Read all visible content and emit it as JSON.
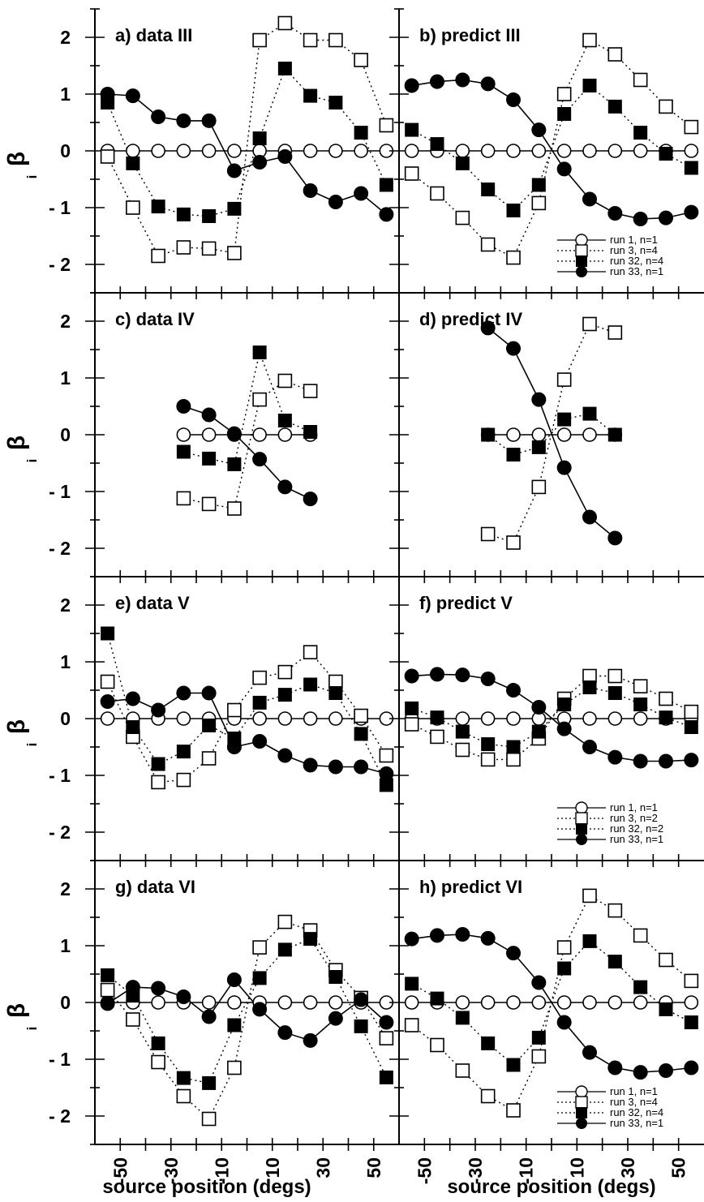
{
  "figure": {
    "ylabel": "β",
    "ylabel_sub": "i",
    "xlabel": "source position (degs)",
    "x_tick_labels": [
      "-50",
      "-30",
      "-10",
      "10",
      "30",
      "50"
    ],
    "y_tick_labels": [
      "2",
      "1",
      "0",
      "- 1",
      "- 2"
    ]
  },
  "chart_data": [
    {
      "type": "line",
      "title": "a) data III",
      "xlim": [
        -60,
        60
      ],
      "ylim": [
        -2.5,
        2.5
      ],
      "x": [
        -55,
        -45,
        -35,
        -25,
        -15,
        -5,
        5,
        15,
        25,
        35,
        45,
        55
      ],
      "series": [
        {
          "marker": "open-circle",
          "line": "solid",
          "values": [
            0,
            0,
            0,
            0,
            0,
            0,
            0,
            0,
            0,
            0,
            0,
            0
          ]
        },
        {
          "marker": "open-square",
          "line": "dotted",
          "values": [
            -0.1,
            -1.0,
            -1.85,
            -1.7,
            -1.72,
            -1.8,
            1.95,
            2.25,
            1.95,
            1.95,
            1.6,
            0.45
          ]
        },
        {
          "marker": "filled-square",
          "line": "dotted",
          "values": [
            0.85,
            -0.22,
            -0.98,
            -1.12,
            -1.15,
            -1.02,
            0.22,
            1.45,
            0.97,
            0.85,
            0.32,
            -0.6
          ]
        },
        {
          "marker": "filled-circle",
          "line": "solid",
          "values": [
            1.0,
            0.97,
            0.6,
            0.53,
            0.53,
            -0.35,
            -0.2,
            -0.1,
            -0.7,
            -0.9,
            -0.75,
            -1.12
          ]
        }
      ]
    },
    {
      "type": "line",
      "title": "b) predict III",
      "xlim": [
        -60,
        60
      ],
      "ylim": [
        -2.5,
        2.5
      ],
      "x": [
        -55,
        -45,
        -35,
        -25,
        -15,
        -5,
        5,
        15,
        25,
        35,
        45,
        55
      ],
      "legend_position": "bottom-right",
      "series": [
        {
          "name": "run 1, n=1",
          "marker": "open-circle",
          "line": "solid",
          "values": [
            0,
            0,
            0,
            0,
            0,
            0,
            0,
            0,
            0,
            0,
            0,
            0
          ]
        },
        {
          "name": "run 3, n=4",
          "marker": "open-square",
          "line": "dotted",
          "values": [
            -0.4,
            -0.75,
            -1.18,
            -1.65,
            -1.88,
            -0.92,
            1.0,
            1.95,
            1.7,
            1.25,
            0.78,
            0.42
          ]
        },
        {
          "name": "run 32, n=4",
          "marker": "filled-square",
          "line": "dotted",
          "values": [
            0.37,
            0.12,
            -0.22,
            -0.68,
            -1.05,
            -0.6,
            0.65,
            1.15,
            0.78,
            0.32,
            -0.05,
            -0.3
          ]
        },
        {
          "name": "run 33, n=1",
          "marker": "filled-circle",
          "line": "solid",
          "values": [
            1.15,
            1.22,
            1.25,
            1.18,
            0.9,
            0.37,
            -0.32,
            -0.85,
            -1.1,
            -1.2,
            -1.18,
            -1.08
          ]
        }
      ]
    },
    {
      "type": "line",
      "title": "c) data IV",
      "xlim": [
        -60,
        60
      ],
      "ylim": [
        -2.5,
        2.5
      ],
      "x": [
        -25,
        -15,
        -5,
        5,
        15,
        25
      ],
      "series": [
        {
          "marker": "open-circle",
          "line": "solid",
          "values": [
            0,
            0,
            0,
            0,
            0,
            0
          ]
        },
        {
          "marker": "open-square",
          "line": "dotted",
          "values": [
            -1.12,
            -1.22,
            -1.3,
            0.62,
            0.95,
            0.77
          ]
        },
        {
          "marker": "filled-square",
          "line": "dotted",
          "values": [
            -0.3,
            -0.42,
            -0.52,
            1.45,
            0.25,
            0.05
          ]
        },
        {
          "marker": "filled-circle",
          "line": "solid",
          "values": [
            0.5,
            0.35,
            0.02,
            -0.43,
            -0.92,
            -1.13
          ]
        }
      ]
    },
    {
      "type": "line",
      "title": "d) predict IV",
      "xlim": [
        -60,
        60
      ],
      "ylim": [
        -2.5,
        2.5
      ],
      "x": [
        -25,
        -15,
        -5,
        5,
        15,
        25
      ],
      "series": [
        {
          "marker": "open-circle",
          "line": "solid",
          "values": [
            0,
            0,
            0,
            0,
            0,
            0
          ]
        },
        {
          "marker": "open-square",
          "line": "dotted",
          "values": [
            -1.75,
            -1.9,
            -0.92,
            0.97,
            1.95,
            1.8
          ]
        },
        {
          "marker": "filled-square",
          "line": "dotted",
          "values": [
            0.0,
            -0.35,
            -0.22,
            0.27,
            0.37,
            0.0
          ]
        },
        {
          "marker": "filled-circle",
          "line": "solid",
          "values": [
            1.88,
            1.52,
            0.62,
            -0.58,
            -1.45,
            -1.82
          ]
        }
      ]
    },
    {
      "type": "line",
      "title": "e) data V",
      "xlim": [
        -60,
        60
      ],
      "ylim": [
        -2.5,
        2.5
      ],
      "x": [
        -55,
        -45,
        -35,
        -25,
        -15,
        -5,
        5,
        15,
        25,
        35,
        45,
        55
      ],
      "series": [
        {
          "marker": "open-circle",
          "line": "solid",
          "values": [
            0,
            0,
            0,
            0,
            0,
            0,
            0,
            0,
            0,
            0,
            0,
            0
          ]
        },
        {
          "marker": "open-square",
          "line": "dotted",
          "values": [
            0.65,
            -0.32,
            -1.12,
            -1.08,
            -0.7,
            0.15,
            0.72,
            0.82,
            1.17,
            0.65,
            0.05,
            -0.65
          ]
        },
        {
          "marker": "filled-square",
          "line": "dotted",
          "values": [
            1.5,
            -0.15,
            -0.8,
            -0.58,
            -0.12,
            -0.35,
            0.28,
            0.42,
            0.6,
            0.45,
            -0.27,
            -1.17
          ]
        },
        {
          "marker": "filled-circle",
          "line": "solid",
          "values": [
            0.3,
            0.35,
            0.15,
            0.45,
            0.45,
            -0.5,
            -0.4,
            -0.65,
            -0.82,
            -0.85,
            -0.85,
            -0.97
          ]
        }
      ]
    },
    {
      "type": "line",
      "title": "f) predict V",
      "xlim": [
        -60,
        60
      ],
      "ylim": [
        -2.5,
        2.5
      ],
      "x": [
        -55,
        -45,
        -35,
        -25,
        -15,
        -5,
        5,
        15,
        25,
        35,
        45,
        55
      ],
      "legend_position": "bottom-right",
      "series": [
        {
          "name": "run 1, n=1",
          "marker": "open-circle",
          "line": "solid",
          "values": [
            0,
            0,
            0,
            0,
            0,
            0,
            0,
            0,
            0,
            0,
            0,
            0
          ]
        },
        {
          "name": "run 3, n=2",
          "marker": "open-square",
          "line": "dotted",
          "values": [
            -0.1,
            -0.32,
            -0.55,
            -0.72,
            -0.72,
            -0.35,
            0.35,
            0.75,
            0.75,
            0.57,
            0.35,
            0.12
          ]
        },
        {
          "name": "run 32, n=2",
          "marker": "filled-square",
          "line": "dotted",
          "values": [
            0.18,
            0.02,
            -0.23,
            -0.45,
            -0.5,
            -0.23,
            0.25,
            0.55,
            0.45,
            0.25,
            0.02,
            -0.15
          ]
        },
        {
          "name": "run 33, n=1",
          "marker": "filled-circle",
          "line": "solid",
          "values": [
            0.75,
            0.78,
            0.77,
            0.7,
            0.5,
            0.2,
            -0.18,
            -0.5,
            -0.68,
            -0.75,
            -0.75,
            -0.73
          ]
        }
      ]
    },
    {
      "type": "line",
      "title": "g) data VI",
      "xlim": [
        -60,
        60
      ],
      "ylim": [
        -2.5,
        2.5
      ],
      "x": [
        -55,
        -45,
        -35,
        -25,
        -15,
        -5,
        5,
        15,
        25,
        35,
        45,
        55
      ],
      "series": [
        {
          "marker": "open-circle",
          "line": "solid",
          "values": [
            0,
            0,
            0,
            0,
            0,
            0,
            0,
            0,
            0,
            0,
            0,
            0
          ]
        },
        {
          "marker": "open-square",
          "line": "dotted",
          "values": [
            0.22,
            -0.3,
            -1.05,
            -1.65,
            -2.05,
            -1.15,
            0.97,
            1.42,
            1.27,
            0.57,
            0.08,
            -0.63
          ]
        },
        {
          "marker": "filled-square",
          "line": "dotted",
          "values": [
            0.48,
            0.12,
            -0.72,
            -1.33,
            -1.42,
            -0.4,
            0.43,
            0.93,
            1.12,
            0.45,
            -0.42,
            -1.32
          ]
        },
        {
          "marker": "filled-circle",
          "line": "solid",
          "values": [
            -0.02,
            0.27,
            0.25,
            0.1,
            -0.25,
            0.4,
            -0.12,
            -0.53,
            -0.67,
            -0.28,
            0.05,
            -0.35
          ]
        }
      ]
    },
    {
      "type": "line",
      "title": "h) predict VI",
      "xlim": [
        -60,
        60
      ],
      "ylim": [
        -2.5,
        2.5
      ],
      "x": [
        -55,
        -45,
        -35,
        -25,
        -15,
        -5,
        5,
        15,
        25,
        35,
        45,
        55
      ],
      "legend_position": "bottom-right",
      "series": [
        {
          "name": "run 1, n=1",
          "marker": "open-circle",
          "line": "solid",
          "values": [
            0,
            0,
            0,
            0,
            0,
            0,
            0,
            0,
            0,
            0,
            0,
            0
          ]
        },
        {
          "name": "run 3, n=4",
          "marker": "open-square",
          "line": "dotted",
          "values": [
            -0.4,
            -0.75,
            -1.2,
            -1.65,
            -1.9,
            -0.95,
            0.97,
            1.88,
            1.62,
            1.18,
            0.75,
            0.38
          ]
        },
        {
          "name": "run 32, n=4",
          "marker": "filled-square",
          "line": "dotted",
          "values": [
            0.33,
            0.07,
            -0.27,
            -0.72,
            -1.1,
            -0.62,
            0.6,
            1.08,
            0.72,
            0.27,
            -0.12,
            -0.35
          ]
        },
        {
          "name": "run 33, n=1",
          "marker": "filled-circle",
          "line": "solid",
          "values": [
            1.12,
            1.18,
            1.2,
            1.13,
            0.87,
            0.35,
            -0.35,
            -0.88,
            -1.15,
            -1.23,
            -1.2,
            -1.15
          ]
        }
      ]
    }
  ]
}
